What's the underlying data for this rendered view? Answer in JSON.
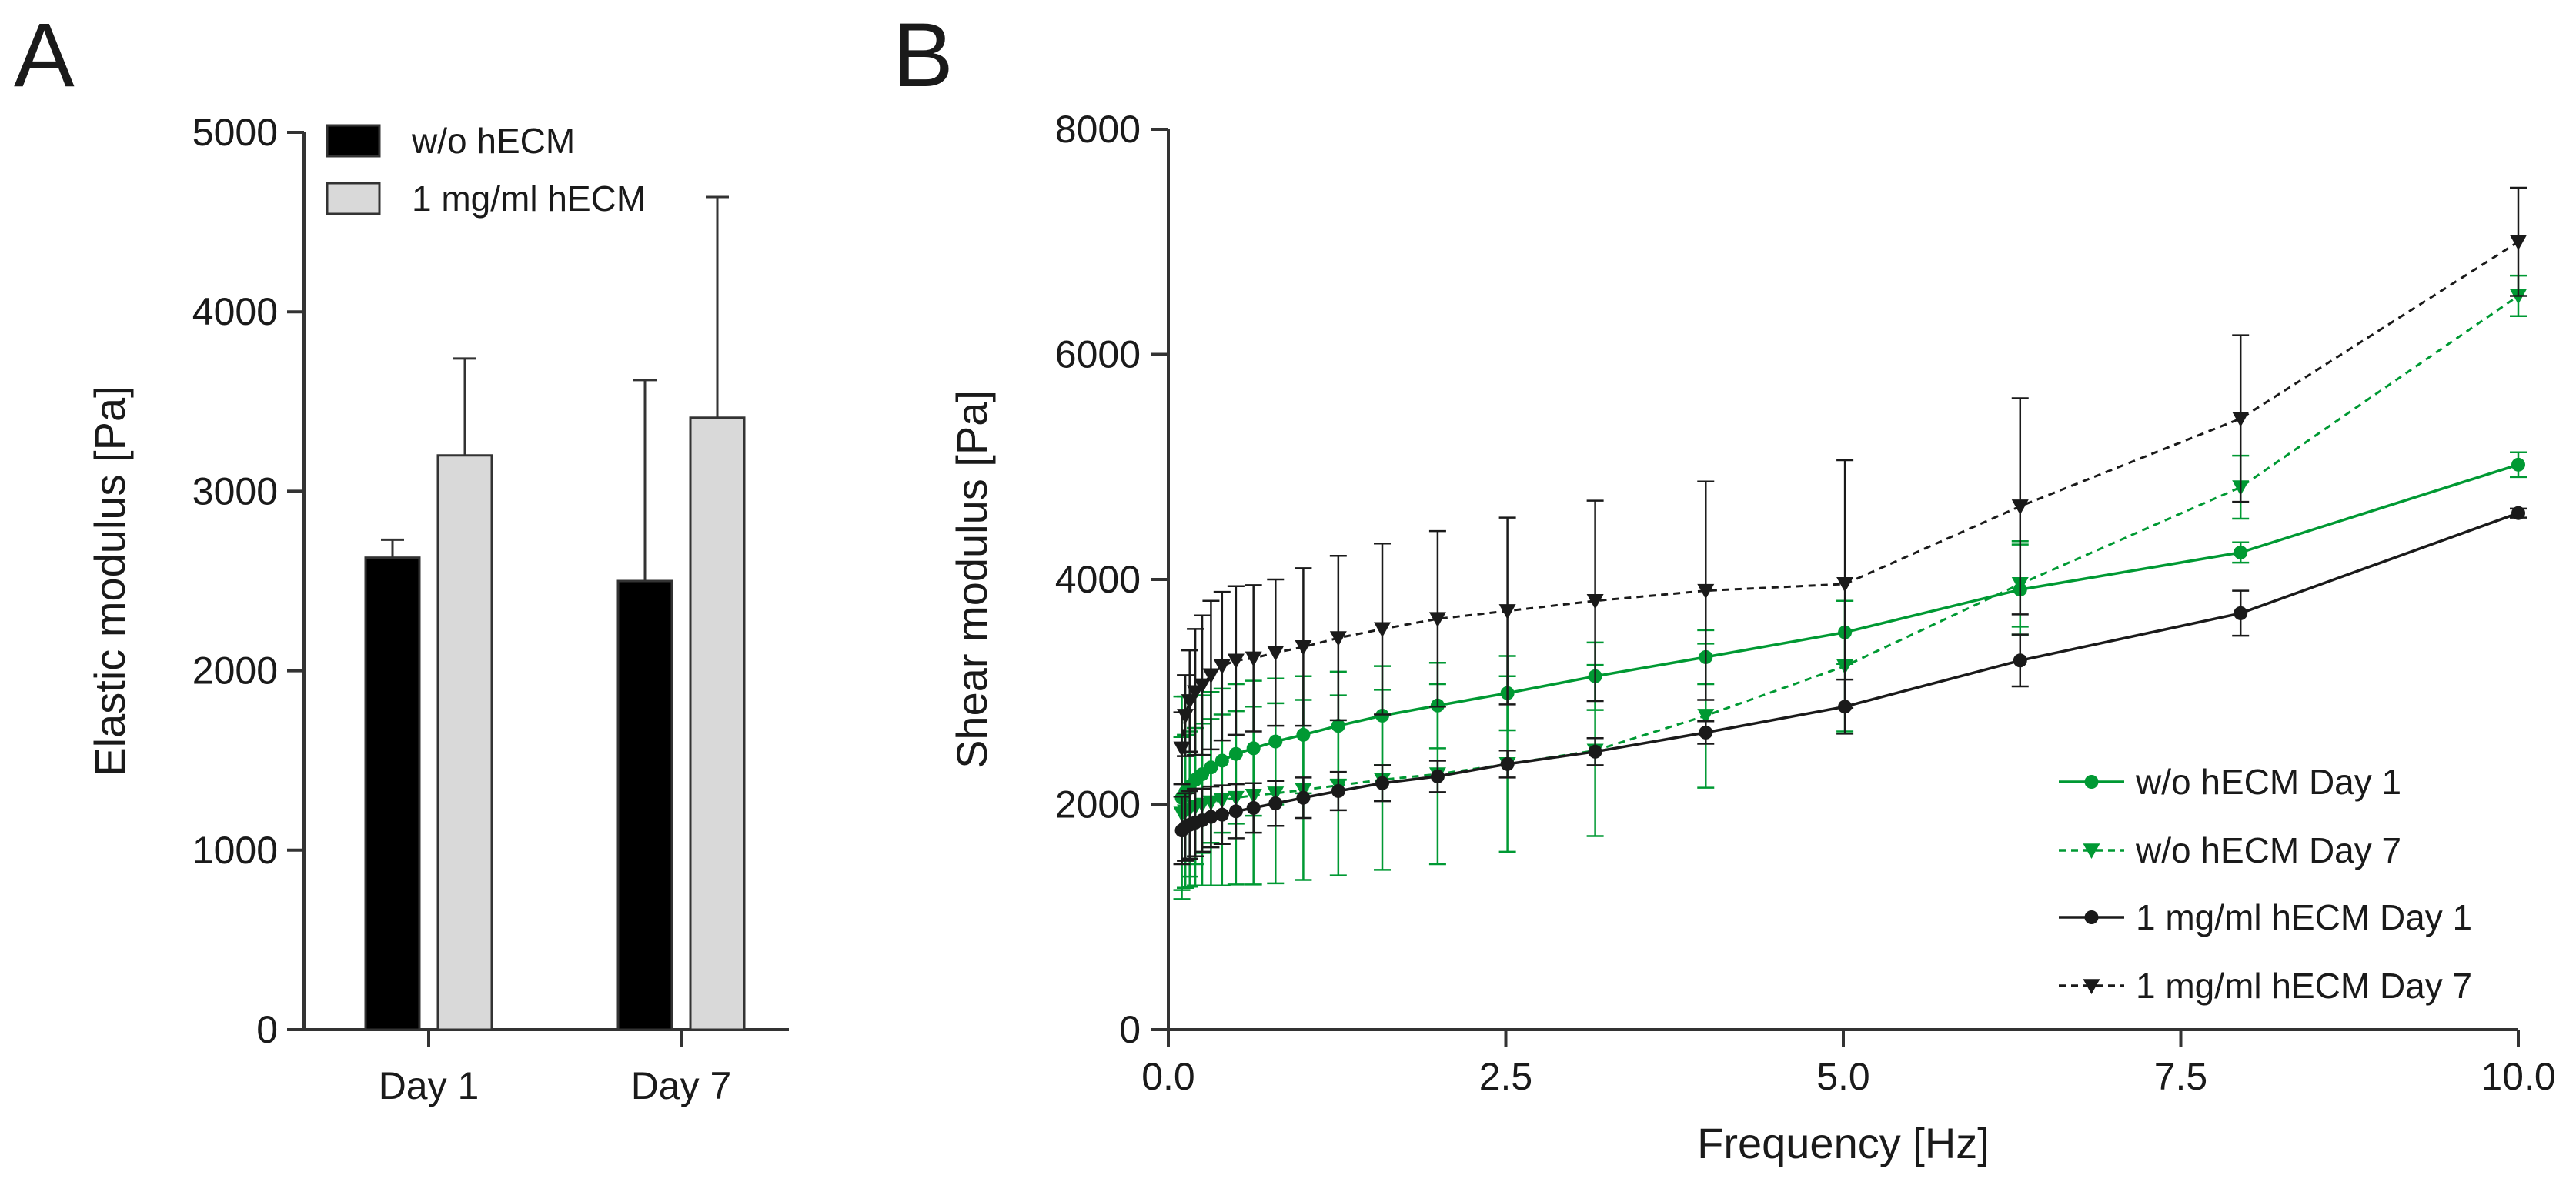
{
  "chart_data": [
    {
      "panel": "A",
      "type": "bar",
      "title": "",
      "xlabel": "",
      "ylabel": "Elastic modulus [Pa]",
      "ylim": [
        0,
        5000
      ],
      "yticks": [
        0,
        1000,
        2000,
        3000,
        4000,
        5000
      ],
      "categories": [
        "Day 1",
        "Day 7"
      ],
      "grid": false,
      "legend_position": "top",
      "series": [
        {
          "name": "w/o hECM",
          "color": "#000000",
          "values": [
            2630,
            2500
          ],
          "errors": [
            100,
            1120
          ]
        },
        {
          "name": "1 mg/ml hECM",
          "color": "#d9d9d9",
          "values": [
            3200,
            3410
          ],
          "errors": [
            540,
            1230
          ]
        }
      ]
    },
    {
      "panel": "B",
      "type": "line",
      "title": "",
      "xlabel": "Frequency [Hz]",
      "ylabel": "Shear modulus [Pa]",
      "xlim": [
        0,
        10
      ],
      "ylim": [
        0,
        8000
      ],
      "xticks": [
        0,
        2.5,
        5,
        7.5,
        10
      ],
      "xtick_labels": [
        "0.0",
        "2.5",
        "5.0",
        "7.5",
        "10.0"
      ],
      "yticks": [
        0,
        2000,
        4000,
        6000,
        8000
      ],
      "grid": false,
      "legend_position": "bottom-right",
      "x": [
        0.1,
        0.126,
        0.158,
        0.2,
        0.251,
        0.316,
        0.398,
        0.501,
        0.631,
        0.794,
        1.0,
        1.259,
        1.585,
        1.995,
        2.512,
        3.162,
        3.981,
        5.012,
        6.31,
        7.943,
        10.0
      ],
      "series": [
        {
          "name": "w/o hECM Day 1",
          "color": "#009933",
          "dashed": false,
          "marker": "circle",
          "values": [
            2060,
            2110,
            2160,
            2220,
            2270,
            2330,
            2390,
            2450,
            2500,
            2560,
            2620,
            2700,
            2790,
            2880,
            2990,
            3140,
            3310,
            3530,
            3910,
            4240,
            5020
          ],
          "errors": [
            900,
            850,
            800,
            750,
            700,
            670,
            640,
            620,
            600,
            560,
            520,
            480,
            440,
            380,
            330,
            300,
            240,
            280,
            400,
            90,
            110
          ]
        },
        {
          "name": "w/o hECM Day 7",
          "color": "#009933",
          "dashed": true,
          "marker": "triangle-down",
          "values": [
            1920,
            1940,
            1960,
            1980,
            2000,
            2020,
            2040,
            2060,
            2080,
            2100,
            2130,
            2170,
            2220,
            2270,
            2360,
            2480,
            2790,
            3230,
            3960,
            4820,
            6520
          ],
          "errors": [
            680,
            680,
            690,
            700,
            720,
            740,
            760,
            770,
            790,
            800,
            800,
            800,
            800,
            800,
            780,
            760,
            640,
            580,
            380,
            280,
            180
          ]
        },
        {
          "name": "1 mg/ml hECM Day 1",
          "color": "#1a1a1a",
          "dashed": false,
          "marker": "circle",
          "values": [
            1770,
            1800,
            1820,
            1840,
            1860,
            1890,
            1910,
            1940,
            1970,
            2010,
            2060,
            2120,
            2190,
            2250,
            2360,
            2470,
            2640,
            2870,
            3280,
            3700,
            4590
          ],
          "errors": [
            300,
            300,
            300,
            300,
            280,
            270,
            260,
            240,
            220,
            200,
            180,
            170,
            160,
            140,
            120,
            120,
            100,
            240,
            230,
            200,
            40
          ]
        },
        {
          "name": "1 mg/ml hECM Day 7",
          "color": "#1a1a1a",
          "dashed": true,
          "marker": "triangle-down",
          "values": [
            2500,
            2790,
            2920,
            3000,
            3060,
            3150,
            3230,
            3280,
            3300,
            3350,
            3400,
            3480,
            3560,
            3650,
            3720,
            3810,
            3900,
            3960,
            4650,
            5430,
            7000
          ],
          "errors": [
            320,
            360,
            450,
            560,
            620,
            660,
            660,
            660,
            650,
            650,
            700,
            730,
            760,
            780,
            830,
            890,
            970,
            1100,
            960,
            740,
            480
          ]
        }
      ]
    }
  ],
  "panels": {
    "a_label": "A",
    "b_label": "B"
  }
}
